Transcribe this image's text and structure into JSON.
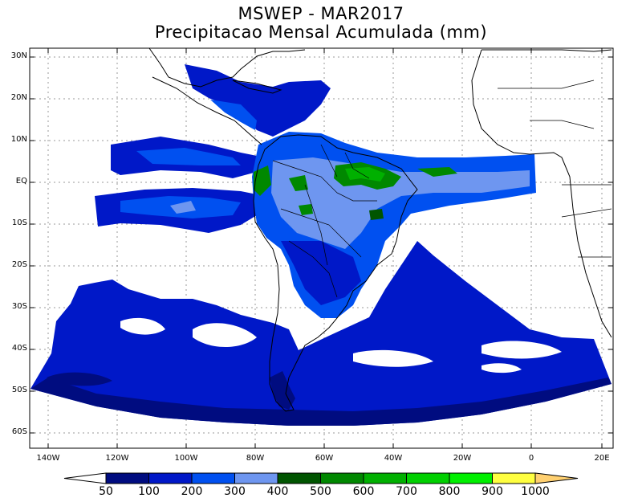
{
  "title": "MSWEP - MAR2017",
  "subtitle": "Precipitacao Mensal Acumulada (mm)",
  "lat_labels": [
    "30N",
    "20N",
    "10N",
    "EQ",
    "10S",
    "20S",
    "30S",
    "40S",
    "50S",
    "60S"
  ],
  "lon_labels": [
    "140W",
    "120W",
    "100W",
    "80W",
    "60W",
    "40W",
    "20W",
    "0",
    "20E"
  ],
  "colorbar": {
    "labels": [
      "50",
      "100",
      "200",
      "300",
      "400",
      "500",
      "600",
      "700",
      "800",
      "900",
      "1000"
    ],
    "colors": [
      "#ffffff",
      "#000c80",
      "#0018c8",
      "#0050f0",
      "#6e96f0",
      "#005500",
      "#008800",
      "#00b000",
      "#00d000",
      "#00f000",
      "#ffff40",
      "#ffd070"
    ]
  }
}
